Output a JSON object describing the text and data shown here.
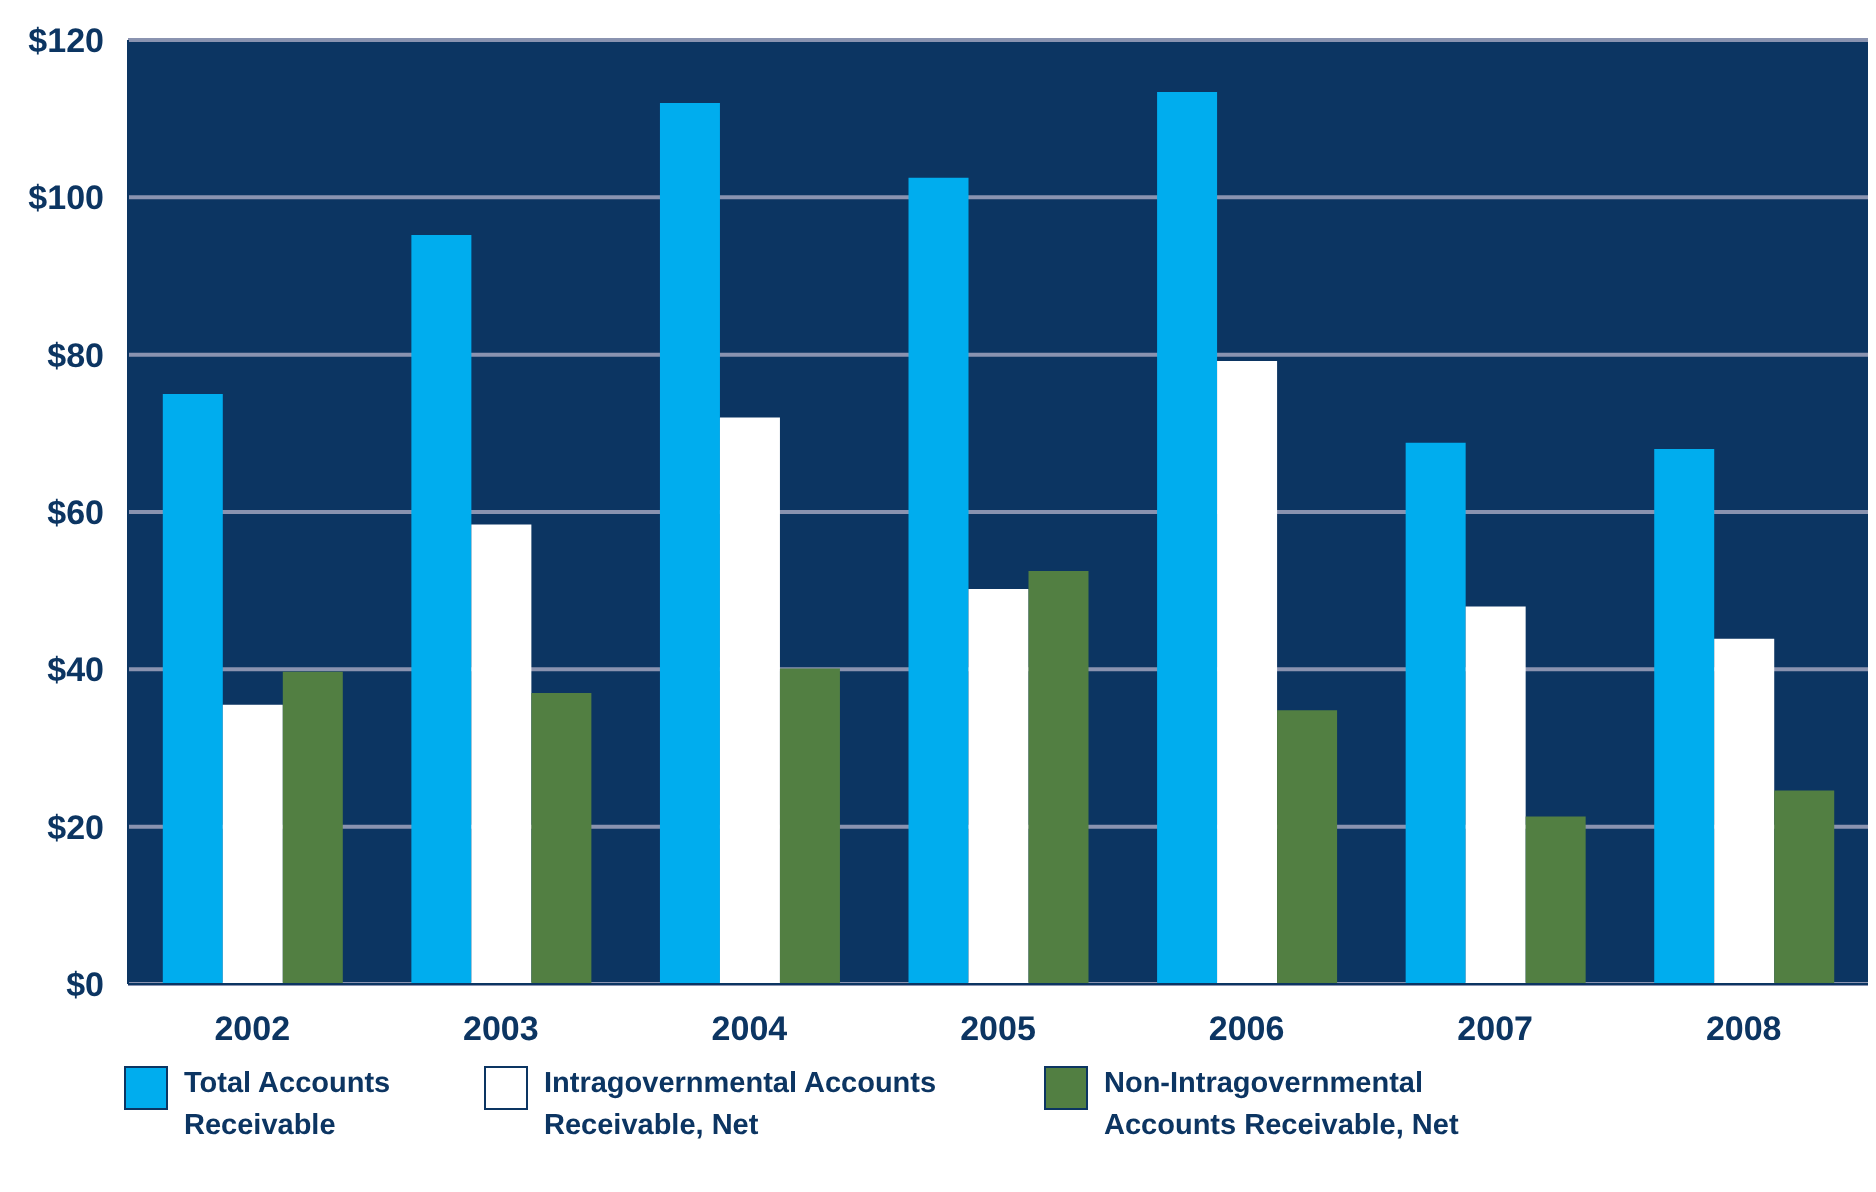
{
  "chart_data": {
    "type": "bar",
    "categories": [
      "2002",
      "2003",
      "2004",
      "2005",
      "2006",
      "2007",
      "2008"
    ],
    "series": [
      {
        "name": "Total Accounts Receivable",
        "color": "#00adee",
        "values": [
          75,
          95.2,
          112,
          102.5,
          113.4,
          68.8,
          68
        ]
      },
      {
        "name": "Intragovernmental Accounts Receivable, Net",
        "color": "#ffffff",
        "values": [
          35.5,
          58.4,
          72,
          50.2,
          79.2,
          48,
          43.9
        ]
      },
      {
        "name": "Non-Intragovernmental Accounts Receivable, Net",
        "color": "#527f42",
        "values": [
          39.7,
          37,
          40.1,
          52.5,
          34.8,
          21.3,
          24.6
        ]
      }
    ],
    "ylim": [
      0,
      120
    ],
    "yticks": [
      {
        "value": 0,
        "label": "$0"
      },
      {
        "value": 20,
        "label": "$20"
      },
      {
        "value": 40,
        "label": "$40"
      },
      {
        "value": 60,
        "label": "$60"
      },
      {
        "value": 80,
        "label": "$80"
      },
      {
        "value": 100,
        "label": "$100"
      },
      {
        "value": 120,
        "label": "$120"
      }
    ],
    "grid": "y",
    "legend": "bottom left"
  }
}
